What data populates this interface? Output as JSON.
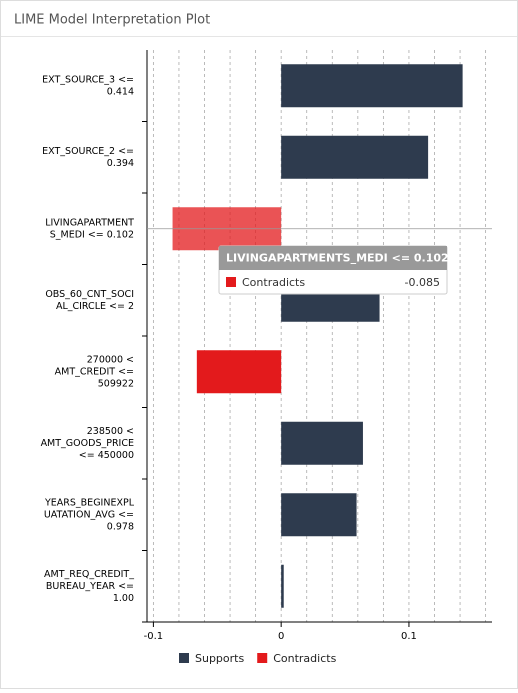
{
  "panel_title": "LIME Model Interpretation Plot",
  "chart_data": {
    "type": "barh",
    "categories": [
      [
        "EXT_SOURCE_3 <=",
        "0.414"
      ],
      [
        "EXT_SOURCE_2 <=",
        "0.394"
      ],
      [
        "LIVINGAPARTMENT",
        "S_MEDI <= 0.102"
      ],
      [
        "OBS_60_CNT_SOCI",
        "AL_CIRCLE <= 2"
      ],
      [
        "270000 <",
        "AMT_CREDIT <=",
        "509922"
      ],
      [
        "238500 <",
        "AMT_GOODS_PRICE",
        "<= 450000"
      ],
      [
        "YEARS_BEGINEXPL",
        "UATATION_AVG <=",
        "0.978"
      ],
      [
        "AMT_REQ_CREDIT_",
        "BUREAU_YEAR <=",
        "1.00"
      ]
    ],
    "values": [
      0.142,
      0.115,
      -0.085,
      0.077,
      -0.066,
      0.064,
      0.059,
      0.002
    ],
    "xlim": [
      -0.105,
      0.165
    ],
    "xticks": [
      -0.1,
      0,
      0.1
    ],
    "xgrid": [
      -0.1,
      -0.08,
      -0.06,
      -0.04,
      -0.02,
      0,
      0.02,
      0.04,
      0.06,
      0.08,
      0.1,
      0.12,
      0.14,
      0.16
    ],
    "legend": [
      {
        "name": "Supports",
        "color": "#2e3b4e"
      },
      {
        "name": "Contradicts",
        "color": "#e31a1c"
      }
    ],
    "highlight": 2,
    "tooltip": {
      "title": "LIVINGAPARTMENTS_MEDI <= 0.102",
      "series": "Contradicts",
      "value": -0.085
    }
  }
}
